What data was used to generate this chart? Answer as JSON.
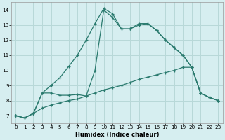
{
  "xlabel": "Humidex (Indice chaleur)",
  "bg_color": "#d6eef0",
  "line_color": "#2a7a6e",
  "grid_color": "#b8d8d8",
  "xlim": [
    -0.5,
    23.5
  ],
  "ylim": [
    6.5,
    14.5
  ],
  "yticks": [
    7,
    8,
    9,
    10,
    11,
    12,
    13,
    14
  ],
  "xticks": [
    0,
    1,
    2,
    3,
    4,
    5,
    6,
    7,
    8,
    9,
    10,
    11,
    12,
    13,
    14,
    15,
    16,
    17,
    18,
    19,
    20,
    21,
    22,
    23
  ],
  "series1_x": [
    0,
    1,
    2,
    3,
    4,
    5,
    6,
    7,
    8,
    9,
    10,
    11,
    12,
    13,
    14,
    15,
    16,
    17,
    18,
    19,
    20,
    21,
    22,
    23
  ],
  "series1_y": [
    7.0,
    6.85,
    7.15,
    8.5,
    9.0,
    9.5,
    10.25,
    11.0,
    12.0,
    13.1,
    14.1,
    13.75,
    12.75,
    12.75,
    13.1,
    13.1,
    12.65,
    12.0,
    11.5,
    11.0,
    10.2,
    8.5,
    8.2,
    8.0
  ],
  "series2_x": [
    0,
    1,
    2,
    3,
    4,
    5,
    6,
    7,
    8,
    9,
    10,
    11,
    12,
    13,
    14,
    15,
    16,
    17,
    18,
    19,
    20,
    21,
    22,
    23
  ],
  "series2_y": [
    7.0,
    6.85,
    7.15,
    8.5,
    8.5,
    8.35,
    8.35,
    8.4,
    8.3,
    10.0,
    14.0,
    13.5,
    12.75,
    12.75,
    13.0,
    13.1,
    12.65,
    12.0,
    11.5,
    11.0,
    10.2,
    8.5,
    8.2,
    8.0
  ],
  "series3_x": [
    0,
    1,
    2,
    3,
    4,
    5,
    6,
    7,
    8,
    9,
    10,
    11,
    12,
    13,
    14,
    15,
    16,
    17,
    18,
    19,
    20,
    21,
    22,
    23
  ],
  "series3_y": [
    7.0,
    6.85,
    7.15,
    7.5,
    7.7,
    7.85,
    8.0,
    8.1,
    8.3,
    8.5,
    8.7,
    8.85,
    9.0,
    9.2,
    9.4,
    9.55,
    9.7,
    9.85,
    10.0,
    10.2,
    10.2,
    8.5,
    8.2,
    8.0
  ],
  "xlabel_fontsize": 6.0,
  "tick_fontsize": 5.2,
  "linewidth": 0.9,
  "markersize": 3.5
}
